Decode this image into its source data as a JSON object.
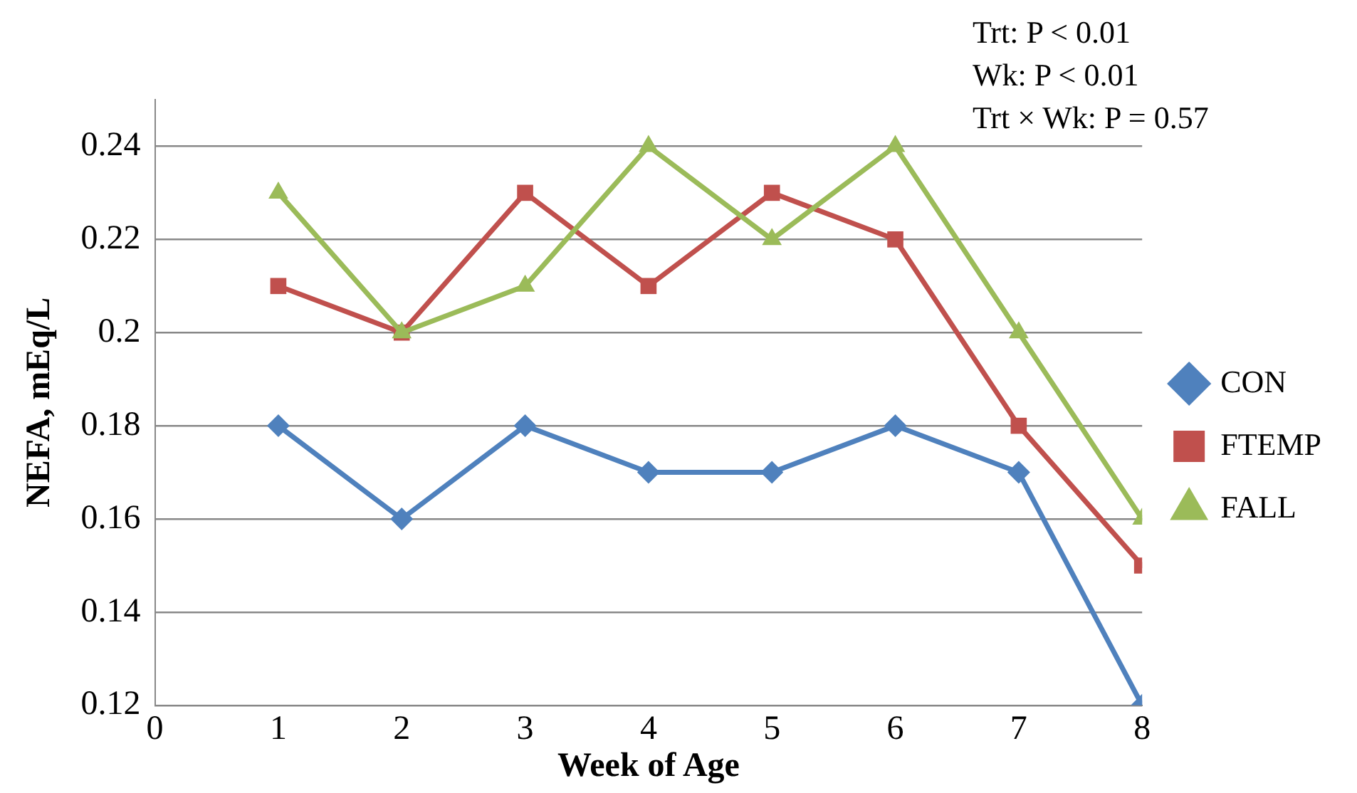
{
  "chart_data": {
    "type": "line",
    "xlabel": "Week of Age",
    "ylabel": "NEFA, mEq/L",
    "annotations": [
      "Trt: P < 0.01",
      "Wk: P < 0.01",
      "Trt × Wk: P = 0.57"
    ],
    "x": [
      1,
      2,
      3,
      4,
      5,
      6,
      7,
      8
    ],
    "series": [
      {
        "name": "CON",
        "color": "#4f81bd",
        "marker": "diamond",
        "values": [
          0.18,
          0.16,
          0.18,
          0.17,
          0.17,
          0.18,
          0.17,
          0.12
        ]
      },
      {
        "name": "FTEMP",
        "color": "#c0504d",
        "marker": "square",
        "values": [
          0.21,
          0.2,
          0.23,
          0.21,
          0.23,
          0.22,
          0.18,
          0.15
        ]
      },
      {
        "name": "FALL",
        "color": "#9bbb59",
        "marker": "triangle",
        "values": [
          0.23,
          0.2,
          0.21,
          0.24,
          0.22,
          0.24,
          0.2,
          0.16
        ]
      }
    ],
    "xlim": [
      0,
      8
    ],
    "xticks": [
      0,
      1,
      2,
      3,
      4,
      5,
      6,
      7,
      8
    ],
    "ylim": [
      0.12,
      0.25
    ],
    "yticks": [
      0.12,
      0.14,
      0.16,
      0.18,
      0.2,
      0.22,
      0.24
    ],
    "grid": "y",
    "legend": "right",
    "line_style": "solid"
  }
}
